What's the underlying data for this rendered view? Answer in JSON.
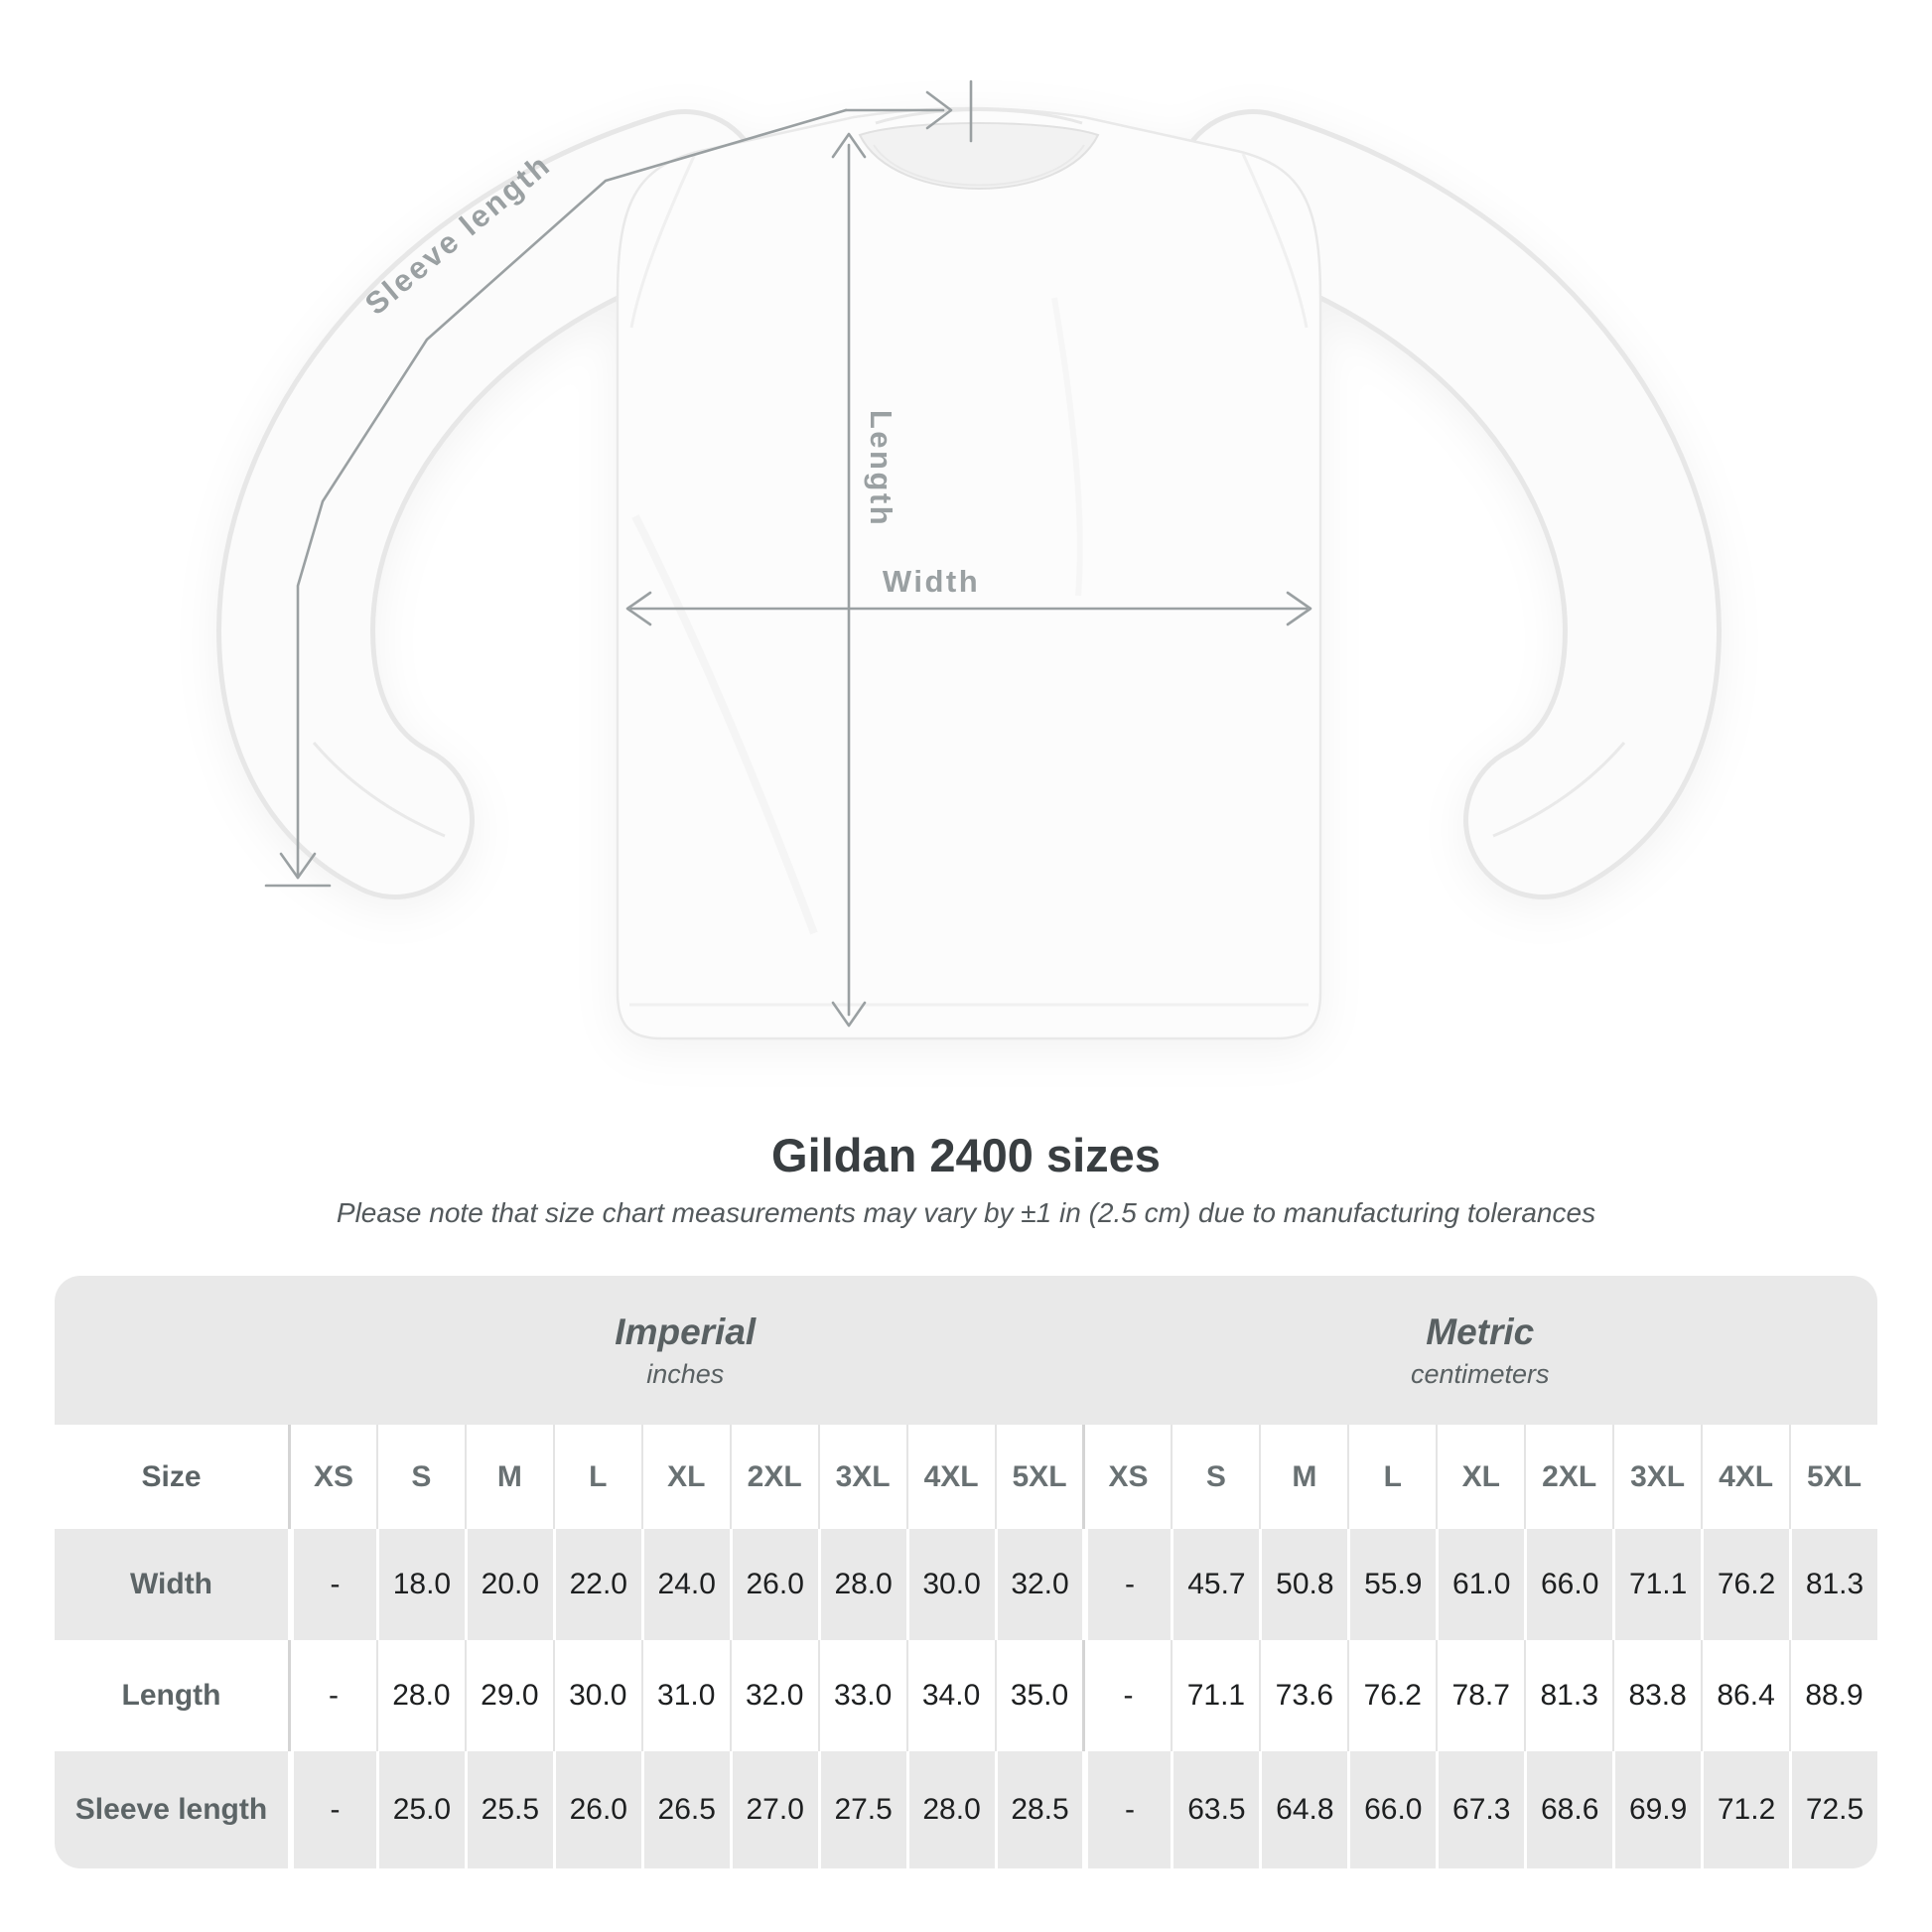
{
  "diagram": {
    "sleeve_label": "Sleeve length",
    "length_label": "Length",
    "width_label": "Width"
  },
  "title": "Gildan 2400 sizes",
  "subtitle": "Please note that size chart measurements may vary by ±1 in (2.5 cm) due to manufacturing tolerances",
  "table": {
    "size_header": "Size",
    "groups": [
      {
        "name": "Imperial",
        "unit": "inches"
      },
      {
        "name": "Metric",
        "unit": "centimeters"
      }
    ],
    "sizes": [
      "XS",
      "S",
      "M",
      "L",
      "XL",
      "2XL",
      "3XL",
      "4XL",
      "5XL"
    ],
    "rows": [
      {
        "label": "Width",
        "imperial": [
          "-",
          "18.0",
          "20.0",
          "22.0",
          "24.0",
          "26.0",
          "28.0",
          "30.0",
          "32.0"
        ],
        "metric": [
          "-",
          "45.7",
          "50.8",
          "55.9",
          "61.0",
          "66.0",
          "71.1",
          "76.2",
          "81.3"
        ]
      },
      {
        "label": "Length",
        "imperial": [
          "-",
          "28.0",
          "29.0",
          "30.0",
          "31.0",
          "32.0",
          "33.0",
          "34.0",
          "35.0"
        ],
        "metric": [
          "-",
          "71.1",
          "73.6",
          "76.2",
          "78.7",
          "81.3",
          "83.8",
          "86.4",
          "88.9"
        ]
      },
      {
        "label": "Sleeve length",
        "imperial": [
          "-",
          "25.0",
          "25.5",
          "26.0",
          "26.5",
          "27.0",
          "27.5",
          "28.0",
          "28.5"
        ],
        "metric": [
          "-",
          "63.5",
          "64.8",
          "66.0",
          "67.3",
          "68.6",
          "69.9",
          "71.2",
          "72.5"
        ]
      }
    ]
  },
  "colors": {
    "measurement_gray": "#9aa0a2",
    "table_stripe": "#e9e9e9",
    "title_color": "#393e41"
  }
}
